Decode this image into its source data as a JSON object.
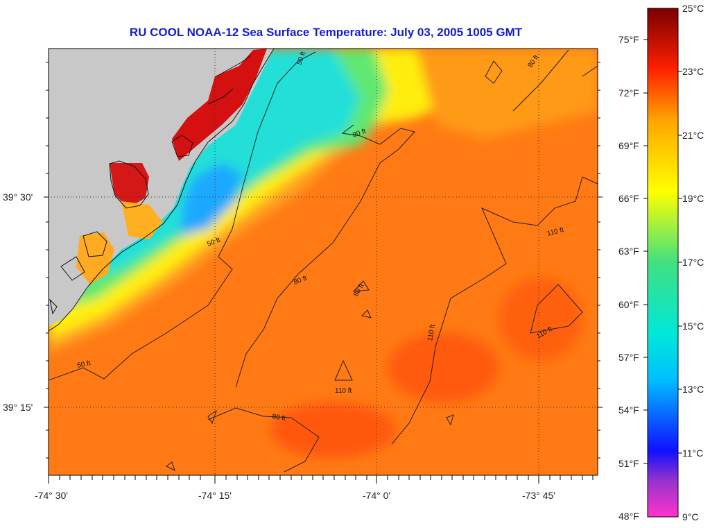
{
  "title": "RU COOL  NOAA-12  Sea Surface Temperature:  July 03, 2005 1005 GMT",
  "longitude_labels": [
    "-74° 30'",
    "-74° 15'",
    "-74° 0'",
    "-73° 45'"
  ],
  "latitude_labels": [
    "39° 30'",
    "39° 15'"
  ],
  "contour_labels": [
    "50 ft",
    "50 ft",
    "50 ft",
    "80 ft",
    "80 ft",
    "80 ft",
    "80 ft",
    "80 ft",
    "110 ft",
    "110 ft",
    "110 ft",
    "110 ft"
  ],
  "colorbar": {
    "fahrenheit_labels": [
      "75°F",
      "72°F",
      "69°F",
      "66°F",
      "63°F",
      "60°F",
      "57°F",
      "54°F",
      "51°F",
      "48°F"
    ],
    "celsius_labels": [
      "25°C",
      "23°C",
      "21°C",
      "19°C",
      "17°C",
      "15°C",
      "13°C",
      "11°C",
      "9°C"
    ],
    "range_celsius": [
      9,
      25
    ],
    "range_fahrenheit": [
      48,
      77
    ]
  },
  "colors": {
    "land": "#c8c8c8",
    "title": "#1420c8",
    "colorbar_stops": [
      "#ff33cc",
      "#9933cc",
      "#1010ff",
      "#00bfff",
      "#00e8d8",
      "#40e080",
      "#ffff00",
      "#ffa500",
      "#ff2000",
      "#7a0000"
    ]
  }
}
